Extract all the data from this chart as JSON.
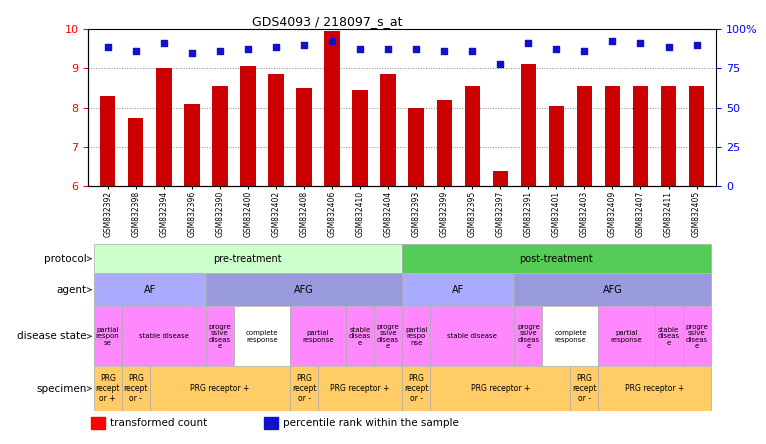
{
  "title": "GDS4093 / 218097_s_at",
  "samples": [
    "GSM832392",
    "GSM832398",
    "GSM832394",
    "GSM832396",
    "GSM832390",
    "GSM832400",
    "GSM832402",
    "GSM832408",
    "GSM832406",
    "GSM832410",
    "GSM832404",
    "GSM832393",
    "GSM832399",
    "GSM832395",
    "GSM832397",
    "GSM832391",
    "GSM832401",
    "GSM832403",
    "GSM832409",
    "GSM832407",
    "GSM832411",
    "GSM832405"
  ],
  "bar_values": [
    8.3,
    7.75,
    9.0,
    8.1,
    8.55,
    9.05,
    8.85,
    8.5,
    9.95,
    8.45,
    8.85,
    8.0,
    8.2,
    8.55,
    6.4,
    9.1,
    8.05,
    8.55,
    8.55,
    8.55,
    8.55,
    8.55
  ],
  "dot_values": [
    9.55,
    9.45,
    9.65,
    9.4,
    9.45,
    9.5,
    9.55,
    9.6,
    9.7,
    9.5,
    9.5,
    9.5,
    9.45,
    9.45,
    9.1,
    9.65,
    9.5,
    9.45,
    9.7,
    9.65,
    9.55,
    9.6
  ],
  "ylim": [
    6,
    10
  ],
  "yticks_left": [
    6,
    7,
    8,
    9,
    10
  ],
  "bar_color": "#cc0000",
  "dot_color": "#1111cc",
  "protocol_segments": [
    {
      "label": "pre-treatment",
      "span": [
        0,
        10
      ],
      "color": "#ccffcc"
    },
    {
      "label": "post-treatment",
      "span": [
        11,
        21
      ],
      "color": "#55cc55"
    }
  ],
  "agent_segments": [
    {
      "label": "AF",
      "span": [
        0,
        3
      ],
      "color": "#aaaaff"
    },
    {
      "label": "AFG",
      "span": [
        4,
        10
      ],
      "color": "#9999dd"
    },
    {
      "label": "AF",
      "span": [
        11,
        14
      ],
      "color": "#aaaaff"
    },
    {
      "label": "AFG",
      "span": [
        15,
        21
      ],
      "color": "#9999dd"
    }
  ],
  "disease_segments": [
    {
      "label": "partial\nrespon\nse",
      "span": [
        0,
        0
      ],
      "color": "#ff88ff"
    },
    {
      "label": "stable disease",
      "span": [
        1,
        3
      ],
      "color": "#ff88ff"
    },
    {
      "label": "progre\nssive\ndiseas\ne",
      "span": [
        4,
        4
      ],
      "color": "#ff88ff"
    },
    {
      "label": "complete\nresponse",
      "span": [
        5,
        6
      ],
      "color": "#ffffff"
    },
    {
      "label": "partial\nresponse",
      "span": [
        7,
        8
      ],
      "color": "#ff88ff"
    },
    {
      "label": "stable\ndiseas\ne",
      "span": [
        9,
        9
      ],
      "color": "#ff88ff"
    },
    {
      "label": "progre\nssive\ndiseas\ne",
      "span": [
        10,
        10
      ],
      "color": "#ff88ff"
    },
    {
      "label": "partial\nrespo\nnse",
      "span": [
        11,
        11
      ],
      "color": "#ff88ff"
    },
    {
      "label": "stable disease",
      "span": [
        12,
        14
      ],
      "color": "#ff88ff"
    },
    {
      "label": "progre\nssive\ndiseas\ne",
      "span": [
        15,
        15
      ],
      "color": "#ff88ff"
    },
    {
      "label": "complete\nresponse",
      "span": [
        16,
        17
      ],
      "color": "#ffffff"
    },
    {
      "label": "partial\nresponse",
      "span": [
        18,
        19
      ],
      "color": "#ff88ff"
    },
    {
      "label": "stable\ndiseas\ne",
      "span": [
        20,
        20
      ],
      "color": "#ff88ff"
    },
    {
      "label": "progre\nssive\ndiseas\ne",
      "span": [
        21,
        21
      ],
      "color": "#ff88ff"
    }
  ],
  "specimen_segments": [
    {
      "label": "PRG\nrecept\nor +",
      "span": [
        0,
        0
      ],
      "color": "#ffcc66"
    },
    {
      "label": "PRG\nrecept\nor -",
      "span": [
        1,
        1
      ],
      "color": "#ffcc66"
    },
    {
      "label": "PRG receptor +",
      "span": [
        2,
        6
      ],
      "color": "#ffcc66"
    },
    {
      "label": "PRG\nrecept\nor -",
      "span": [
        7,
        7
      ],
      "color": "#ffcc66"
    },
    {
      "label": "PRG receptor +",
      "span": [
        8,
        10
      ],
      "color": "#ffcc66"
    },
    {
      "label": "PRG\nrecept\nor -",
      "span": [
        11,
        11
      ],
      "color": "#ffcc66"
    },
    {
      "label": "PRG receptor +",
      "span": [
        12,
        16
      ],
      "color": "#ffcc66"
    },
    {
      "label": "PRG\nrecept\nor -",
      "span": [
        17,
        17
      ],
      "color": "#ffcc66"
    },
    {
      "label": "PRG receptor +",
      "span": [
        18,
        21
      ],
      "color": "#ffcc66"
    }
  ]
}
